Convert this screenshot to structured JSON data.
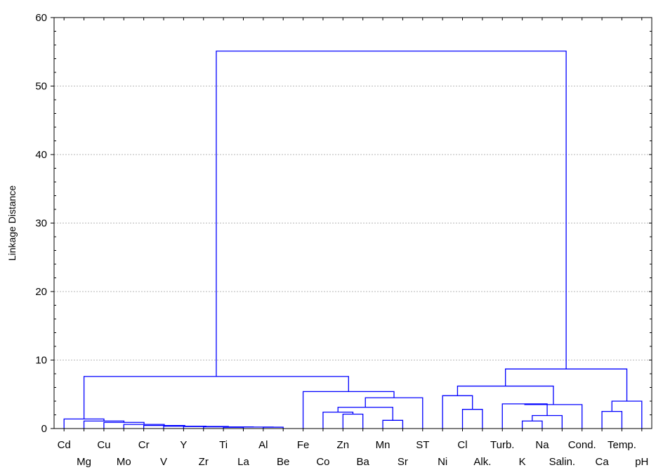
{
  "chart_data": {
    "type": "dendrogram",
    "title": "",
    "xlabel": "",
    "ylabel": "Linkage Distance",
    "ylim": [
      0,
      60
    ],
    "yticks": [
      0,
      10,
      20,
      30,
      40,
      50,
      60
    ],
    "grid": true,
    "line_color": "#0000ff",
    "leaves": [
      "Cd",
      "Mg",
      "Cu",
      "Mo",
      "Cr",
      "V",
      "Y",
      "Zr",
      "Ti",
      "La",
      "Al",
      "Be",
      "Fe",
      "Co",
      "Zn",
      "Ba",
      "Mn",
      "Sr",
      "ST",
      "Ni",
      "Cl",
      "Alk.",
      "Turb.",
      "K",
      "Na",
      "Salin.",
      "Cond.",
      "Ca",
      "Temp.",
      "pH"
    ],
    "merges": [
      {
        "a": "Ti",
        "b": "La",
        "height": 0.18
      },
      {
        "a": "Al",
        "b": "Be",
        "height": 0.2
      },
      {
        "a": "c0",
        "b": "c1",
        "height": 0.22
      },
      {
        "a": "Zr",
        "b": "c2",
        "height": 0.24
      },
      {
        "a": "Y",
        "b": "c3",
        "height": 0.3
      },
      {
        "a": "V",
        "b": "c4",
        "height": 0.35
      },
      {
        "a": "Cr",
        "b": "c5",
        "height": 0.45
      },
      {
        "a": "Mo",
        "b": "c6",
        "height": 0.6
      },
      {
        "a": "Cu",
        "b": "c7",
        "height": 0.9
      },
      {
        "a": "Mg",
        "b": "c8",
        "height": 1.1
      },
      {
        "a": "Cd",
        "b": "c9",
        "height": 1.4
      },
      {
        "a": "Zn",
        "b": "Ba",
        "height": 2.1
      },
      {
        "a": "Co",
        "b": "c11",
        "height": 2.4
      },
      {
        "a": "Mn",
        "b": "Sr",
        "height": 1.2
      },
      {
        "a": "c12",
        "b": "c13",
        "height": 3.1
      },
      {
        "a": "c14",
        "b": "ST",
        "height": 4.5
      },
      {
        "a": "Fe",
        "b": "c15",
        "height": 5.4
      },
      {
        "a": "c10",
        "b": "c16",
        "height": 7.6
      },
      {
        "a": "Cl",
        "b": "Alk.",
        "height": 2.8
      },
      {
        "a": "Ni",
        "b": "c18",
        "height": 4.8
      },
      {
        "a": "K",
        "b": "Na",
        "height": 1.1
      },
      {
        "a": "c20",
        "b": "Salin.",
        "height": 1.9
      },
      {
        "a": "Turb.",
        "b": "c21",
        "height": 3.6
      },
      {
        "a": "c22",
        "b": "Cond.",
        "height": 3.5
      },
      {
        "a": "c19",
        "b": "c23",
        "height": 6.2
      },
      {
        "a": "Ca",
        "b": "Temp.",
        "height": 2.5
      },
      {
        "a": "c25",
        "b": "pH",
        "height": 4.0
      },
      {
        "a": "c24",
        "b": "c26",
        "height": 8.7
      },
      {
        "a": "c17",
        "b": "c27",
        "height": 55.1
      }
    ]
  }
}
